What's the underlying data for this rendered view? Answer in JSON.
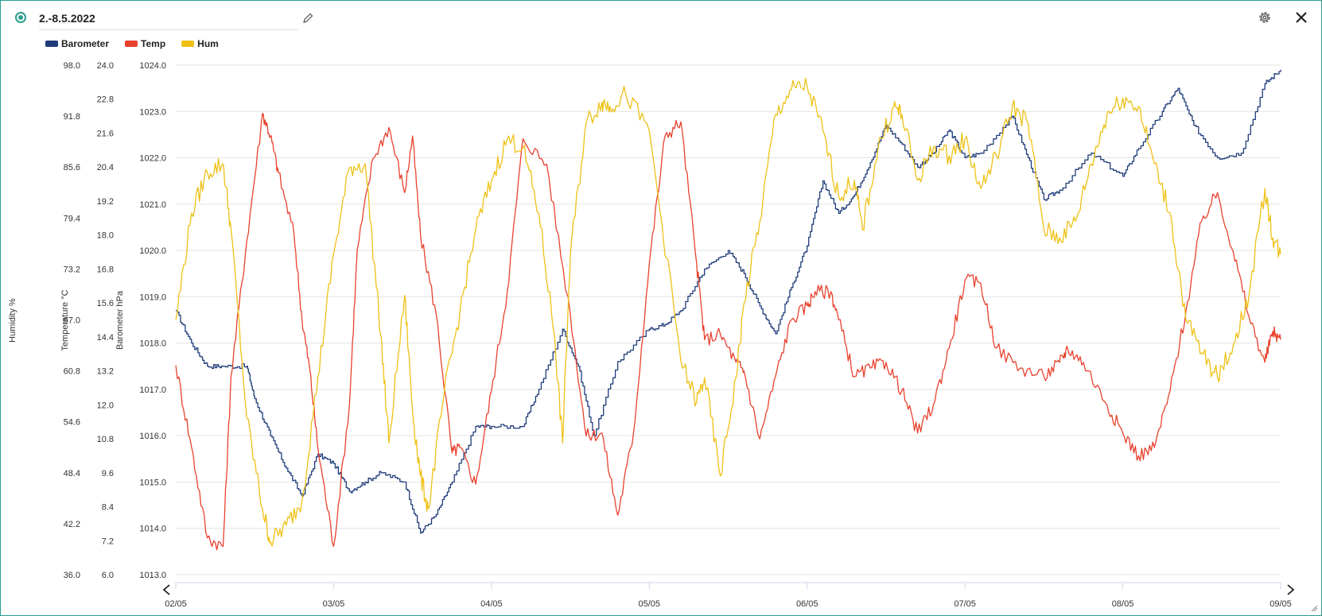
{
  "header": {
    "title": "2.-8.5.2022"
  },
  "colors": {
    "accent": "#2a9d8f",
    "barometer": "#1f3c7a",
    "temp": "#e8412d",
    "hum": "#eec117"
  },
  "chart_data": {
    "type": "line",
    "x_ticks": [
      "02/05",
      "03/05",
      "04/05",
      "05/05",
      "06/05",
      "07/05",
      "08/05",
      "09/05"
    ],
    "xlim": [
      0,
      7
    ],
    "axes": [
      {
        "label": "Humidity %",
        "ylim": [
          36.0,
          98.0
        ],
        "ticks": [
          "98.0",
          "91.8",
          "85.6",
          "79.4",
          "73.2",
          "67.0",
          "60.8",
          "54.6",
          "48.4",
          "42.2",
          "36.0"
        ]
      },
      {
        "label": "Temperature °C",
        "ylim": [
          6.0,
          24.0
        ],
        "ticks": [
          "24.0",
          "22.8",
          "21.6",
          "20.4",
          "19.2",
          "18.0",
          "16.8",
          "15.6",
          "14.4",
          "13.2",
          "12.0",
          "10.8",
          "9.6",
          "8.4",
          "7.2",
          "6.0"
        ]
      },
      {
        "label": "Barometer hPa",
        "ylim": [
          1013.0,
          1024.0
        ],
        "ticks": [
          "1024.0",
          "1023.0",
          "1022.0",
          "1021.0",
          "1020.0",
          "1019.0",
          "1018.0",
          "1017.0",
          "1016.0",
          "1015.0",
          "1014.0",
          "1013.0"
        ]
      }
    ],
    "grid": true,
    "legend_position": "top-left",
    "series": [
      {
        "name": "Barometer",
        "axis": "Barometer hPa",
        "color": "#1f3c7a",
        "x": [
          0,
          0.1,
          0.2,
          0.3,
          0.45,
          0.5,
          0.6,
          0.7,
          0.8,
          0.9,
          1.0,
          1.1,
          1.2,
          1.3,
          1.45,
          1.55,
          1.65,
          1.75,
          1.9,
          2.0,
          2.2,
          2.3,
          2.45,
          2.55,
          2.65,
          2.8,
          3.0,
          3.1,
          3.2,
          3.35,
          3.5,
          3.6,
          3.7,
          3.8,
          3.9,
          4.0,
          4.1,
          4.2,
          4.3,
          4.4,
          4.5,
          4.6,
          4.7,
          4.8,
          4.9,
          5.0,
          5.1,
          5.3,
          5.4,
          5.5,
          5.6,
          5.8,
          6.0,
          6.1,
          6.25,
          6.35,
          6.45,
          6.6,
          6.75,
          6.9,
          7.0
        ],
        "values": [
          1018.7,
          1018.0,
          1017.5,
          1017.5,
          1017.5,
          1016.8,
          1016.0,
          1015.3,
          1014.7,
          1015.6,
          1015.4,
          1014.8,
          1015.0,
          1015.2,
          1015.0,
          1013.9,
          1014.3,
          1015.0,
          1016.2,
          1016.2,
          1016.2,
          1017.0,
          1018.3,
          1017.5,
          1016.0,
          1017.6,
          1018.3,
          1018.4,
          1018.7,
          1019.6,
          1020.0,
          1019.5,
          1018.8,
          1018.2,
          1019.2,
          1020.1,
          1021.5,
          1020.8,
          1021.2,
          1021.9,
          1022.7,
          1022.3,
          1021.8,
          1022.1,
          1022.6,
          1022.0,
          1022.1,
          1022.9,
          1022.0,
          1021.1,
          1021.3,
          1022.1,
          1021.6,
          1022.2,
          1023.0,
          1023.5,
          1022.7,
          1022.0,
          1022.1,
          1023.6,
          1023.9
        ]
      },
      {
        "name": "Temp",
        "axis": "Temperature °C",
        "color": "#e8412d",
        "x": [
          0,
          0.1,
          0.2,
          0.3,
          0.35,
          0.45,
          0.55,
          0.6,
          0.65,
          0.75,
          0.8,
          0.85,
          0.9,
          1.0,
          1.1,
          1.15,
          1.25,
          1.35,
          1.45,
          1.5,
          1.55,
          1.65,
          1.75,
          1.8,
          1.9,
          2.0,
          2.1,
          2.2,
          2.35,
          2.5,
          2.6,
          2.7,
          2.8,
          2.9,
          3.0,
          3.1,
          3.2,
          3.3,
          3.35,
          3.45,
          3.55,
          3.6,
          3.7,
          3.8,
          3.9,
          4.0,
          4.05,
          4.15,
          4.2,
          4.3,
          4.4,
          4.5,
          4.6,
          4.7,
          4.8,
          4.9,
          5.0,
          5.1,
          5.2,
          5.35,
          5.5,
          5.6,
          5.65,
          5.75,
          5.9,
          6.0,
          6.1,
          6.2,
          6.3,
          6.4,
          6.5,
          6.6,
          6.7,
          6.8,
          6.9,
          6.95,
          7.0
        ],
        "values": [
          13.4,
          10.5,
          7.3,
          7.0,
          13.0,
          17.8,
          22.3,
          21.5,
          20.2,
          18.0,
          15.0,
          13.2,
          10.5,
          7.0,
          12.0,
          17.5,
          20.7,
          21.8,
          19.5,
          21.5,
          18.0,
          15.2,
          10.3,
          10.5,
          9.2,
          12.5,
          16.0,
          21.4,
          20.5,
          15.2,
          10.9,
          11.0,
          8.1,
          11.0,
          17.0,
          21.5,
          22.0,
          17.0,
          14.3,
          14.5,
          13.5,
          13.2,
          10.8,
          13.0,
          15.0,
          15.5,
          16.0,
          16.0,
          15.0,
          13.0,
          13.3,
          13.5,
          12.5,
          11.0,
          12.0,
          14.0,
          16.4,
          16.3,
          14.0,
          13.3,
          13.0,
          13.5,
          14.0,
          13.5,
          12.0,
          11.0,
          10.2,
          10.5,
          12.5,
          15.3,
          18.5,
          19.5,
          17.4,
          15.1,
          13.5,
          14.6,
          14.3
        ]
      },
      {
        "name": "Hum",
        "axis": "Humidity %",
        "color": "#eec117",
        "x": [
          0,
          0.1,
          0.2,
          0.3,
          0.35,
          0.45,
          0.55,
          0.6,
          0.7,
          0.8,
          0.9,
          1.0,
          1.1,
          1.2,
          1.3,
          1.35,
          1.45,
          1.5,
          1.55,
          1.6,
          1.7,
          1.8,
          1.9,
          2.0,
          2.1,
          2.2,
          2.3,
          2.4,
          2.45,
          2.5,
          2.6,
          2.7,
          2.75,
          2.85,
          3.0,
          3.2,
          3.3,
          3.35,
          3.45,
          3.55,
          3.6,
          3.7,
          3.8,
          3.9,
          4.0,
          4.1,
          4.2,
          4.3,
          4.35,
          4.45,
          4.55,
          4.6,
          4.7,
          4.8,
          4.9,
          5.0,
          5.1,
          5.2,
          5.3,
          5.4,
          5.5,
          5.6,
          5.7,
          5.8,
          5.9,
          6.0,
          6.1,
          6.2,
          6.3,
          6.4,
          6.5,
          6.6,
          6.7,
          6.8,
          6.9,
          6.95,
          7.0
        ],
        "values": [
          67.0,
          80.0,
          85.0,
          86.0,
          78.0,
          55.0,
          44.0,
          40.0,
          42.0,
          45.0,
          60.0,
          75.0,
          85.5,
          86.0,
          65.0,
          52.0,
          70.0,
          56.0,
          48.0,
          44.0,
          58.0,
          68.0,
          78.0,
          84.0,
          89.0,
          88.0,
          80.0,
          65.0,
          52.0,
          75.0,
          91.0,
          93.5,
          93.0,
          94.5,
          90.0,
          62.0,
          57.0,
          60.0,
          48.0,
          60.0,
          69.0,
          79.0,
          92.0,
          95.0,
          95.5,
          90.0,
          82.0,
          84.0,
          78.0,
          88.0,
          93.0,
          92.0,
          84.0,
          88.0,
          87.0,
          89.0,
          83.0,
          87.0,
          93.0,
          91.0,
          78.0,
          77.0,
          79.0,
          86.0,
          92.0,
          94.0,
          93.0,
          86.0,
          80.0,
          67.0,
          63.0,
          60.0,
          64.0,
          70.0,
          83.0,
          77.0,
          75.0
        ]
      }
    ]
  }
}
